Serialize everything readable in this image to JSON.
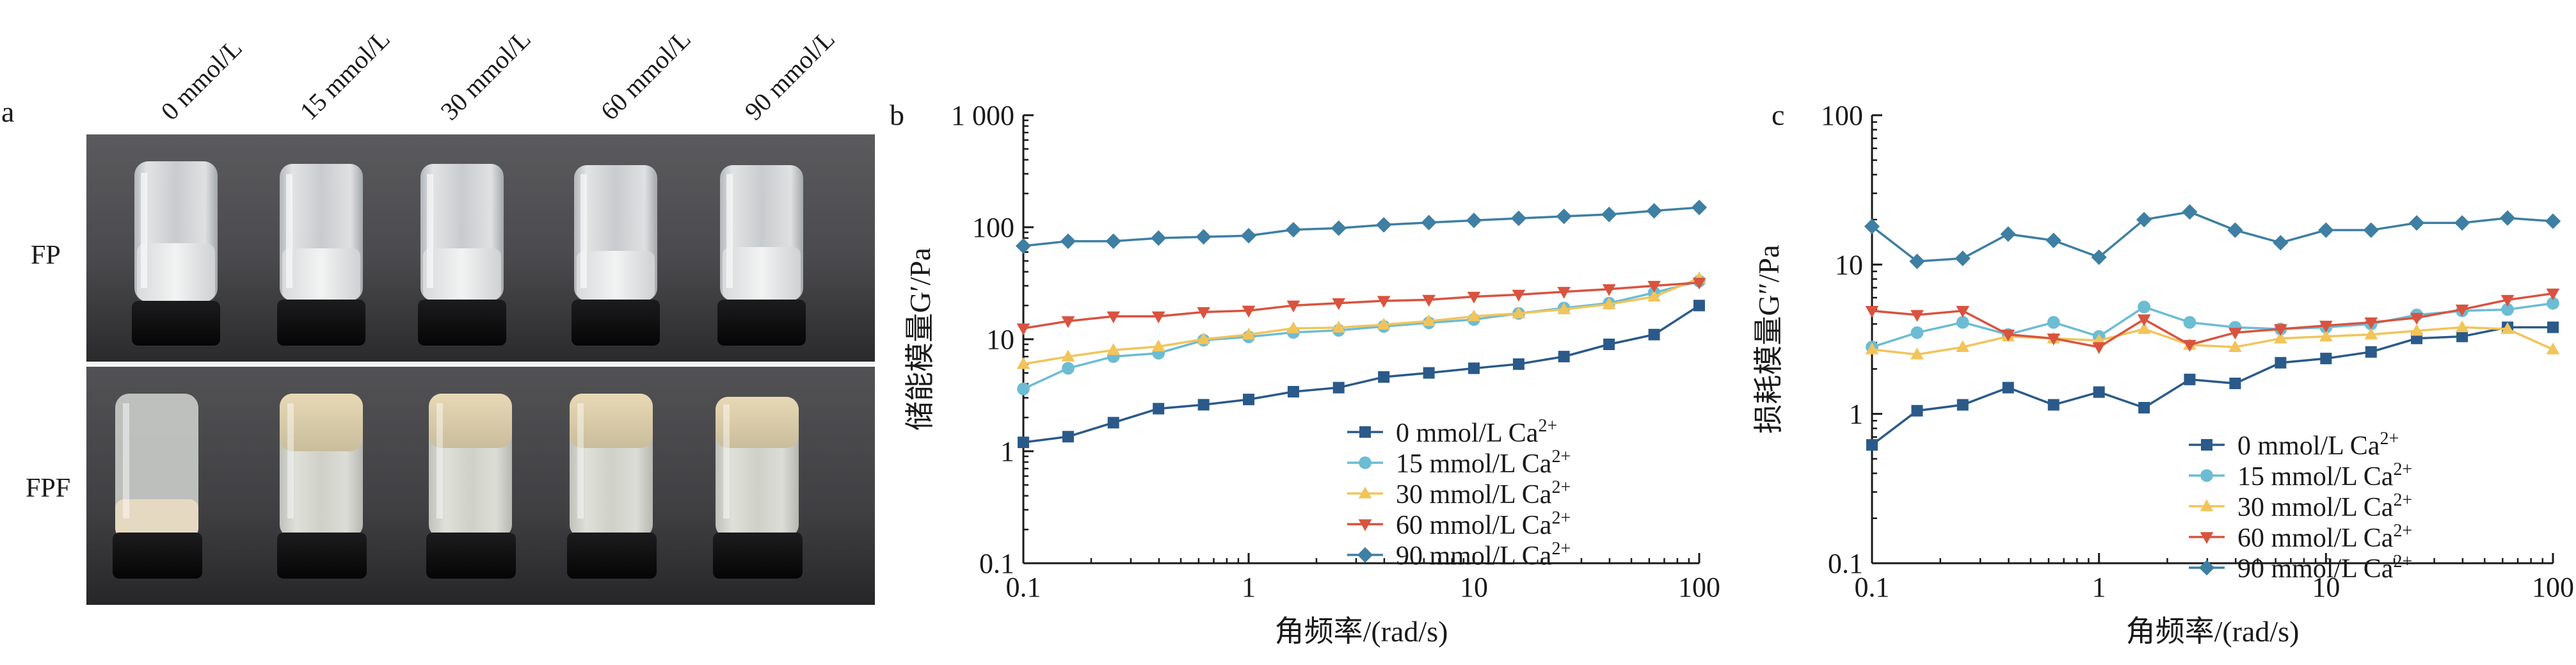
{
  "figure": {
    "panel_a": {
      "letter": "a",
      "column_labels": [
        "0 mmol/L",
        "15 mmol/L",
        "30 mmol/L",
        "60 mmol/L",
        "90 mmol/L"
      ],
      "row_labels": [
        "FP",
        "FPF"
      ]
    },
    "colors": {
      "s0": "#2b5a8a",
      "s15": "#6cbcd4",
      "s30": "#f2c45a",
      "s60": "#d9533f",
      "s90": "#3e7fa3",
      "axis": "#1a1a1a"
    }
  },
  "chart_data": [
    {
      "panel": "b",
      "type": "line",
      "xlabel": "角频率/(rad/s)",
      "ylabel": "储能模量G′/Pa",
      "xscale": "log",
      "yscale": "log",
      "xlim": [
        0.1,
        100
      ],
      "ylim": [
        0.1,
        1000
      ],
      "xticks": [
        "0.1",
        "1",
        "10",
        "100"
      ],
      "yticks": [
        "0.1",
        "1",
        "10",
        "100",
        "1 000"
      ],
      "legend_position": "bottom-right",
      "x": [
        0.1,
        0.158,
        0.251,
        0.398,
        0.631,
        1,
        1.58,
        2.51,
        3.98,
        6.31,
        10,
        15.8,
        25.1,
        39.8,
        63.1,
        100
      ],
      "series": [
        {
          "name": "0 mmol/L Ca²⁺",
          "marker": "square",
          "color": "#2b5a8a",
          "values": [
            1.2,
            1.35,
            1.8,
            2.4,
            2.6,
            2.9,
            3.4,
            3.7,
            4.6,
            5.0,
            5.5,
            6.0,
            7.0,
            9.0,
            11.0,
            20.0
          ]
        },
        {
          "name": "15 mmol/L Ca²⁺",
          "marker": "circle",
          "color": "#6cbcd4",
          "values": [
            3.6,
            5.5,
            7.0,
            7.5,
            9.8,
            10.5,
            11.5,
            12.0,
            13.0,
            14.0,
            15.0,
            17.0,
            19.0,
            21.0,
            26.0,
            33.0
          ]
        },
        {
          "name": "30 mmol/L Ca²⁺",
          "marker": "triangle-up",
          "color": "#f2c45a",
          "values": [
            6.0,
            7.0,
            8.0,
            8.6,
            10.0,
            11.0,
            12.5,
            12.7,
            13.5,
            14.5,
            16.0,
            17.0,
            18.5,
            20.5,
            24.0,
            35.0
          ]
        },
        {
          "name": "60 mmol/L Ca²⁺",
          "marker": "triangle-down",
          "color": "#d9533f",
          "values": [
            12.5,
            14.5,
            16.0,
            16.0,
            17.5,
            18.0,
            20.0,
            21.0,
            22.0,
            22.5,
            24.0,
            25.0,
            26.5,
            28.0,
            30.0,
            32.0
          ]
        },
        {
          "name": "90 mmol/L Ca²⁺",
          "marker": "diamond",
          "color": "#3e7fa3",
          "values": [
            68,
            75,
            75,
            80,
            82,
            84,
            95,
            98,
            105,
            110,
            115,
            120,
            125,
            130,
            140,
            150
          ]
        }
      ]
    },
    {
      "panel": "c",
      "type": "line",
      "xlabel": "角频率/(rad/s)",
      "ylabel": "损耗模量G″/Pa",
      "xscale": "log",
      "yscale": "log",
      "xlim": [
        0.1,
        100
      ],
      "ylim": [
        0.1,
        100
      ],
      "xticks": [
        "0.1",
        "1",
        "10",
        "100"
      ],
      "yticks": [
        "0.1",
        "1",
        "10",
        "100"
      ],
      "legend_position": "bottom-right",
      "x": [
        0.1,
        0.158,
        0.251,
        0.398,
        0.631,
        1,
        1.58,
        2.51,
        3.98,
        6.31,
        10,
        15.8,
        25.1,
        39.8,
        63.1,
        100
      ],
      "series": [
        {
          "name": "0 mmol/L Ca²⁺",
          "marker": "square",
          "color": "#2b5a8a",
          "values": [
            0.62,
            1.05,
            1.15,
            1.5,
            1.15,
            1.4,
            1.1,
            1.7,
            1.6,
            2.2,
            2.35,
            2.6,
            3.2,
            3.3,
            3.8,
            3.8
          ]
        },
        {
          "name": "15 mmol/L Ca²⁺",
          "marker": "circle",
          "color": "#6cbcd4",
          "values": [
            2.8,
            3.5,
            4.1,
            3.4,
            4.1,
            3.3,
            5.2,
            4.1,
            3.8,
            3.7,
            3.8,
            4.0,
            4.6,
            4.9,
            5.0,
            5.5
          ]
        },
        {
          "name": "30 mmol/L Ca²⁺",
          "marker": "triangle-up",
          "color": "#f2c45a",
          "values": [
            2.7,
            2.5,
            2.8,
            3.3,
            3.2,
            3.1,
            3.7,
            2.9,
            2.8,
            3.2,
            3.3,
            3.4,
            3.6,
            3.8,
            3.7,
            2.7
          ]
        },
        {
          "name": "60 mmol/L Ca²⁺",
          "marker": "triangle-down",
          "color": "#d9533f",
          "values": [
            4.9,
            4.6,
            4.9,
            3.4,
            3.2,
            2.8,
            4.3,
            2.9,
            3.5,
            3.7,
            3.9,
            4.1,
            4.4,
            5.0,
            5.8,
            6.4
          ]
        },
        {
          "name": "90 mmol/L Ca²⁺",
          "marker": "diamond",
          "color": "#3e7fa3",
          "values": [
            18,
            10.5,
            11,
            16,
            14.5,
            11.2,
            20,
            22.5,
            17,
            14,
            17,
            17,
            19,
            19,
            20.5,
            19.5
          ]
        }
      ]
    }
  ]
}
